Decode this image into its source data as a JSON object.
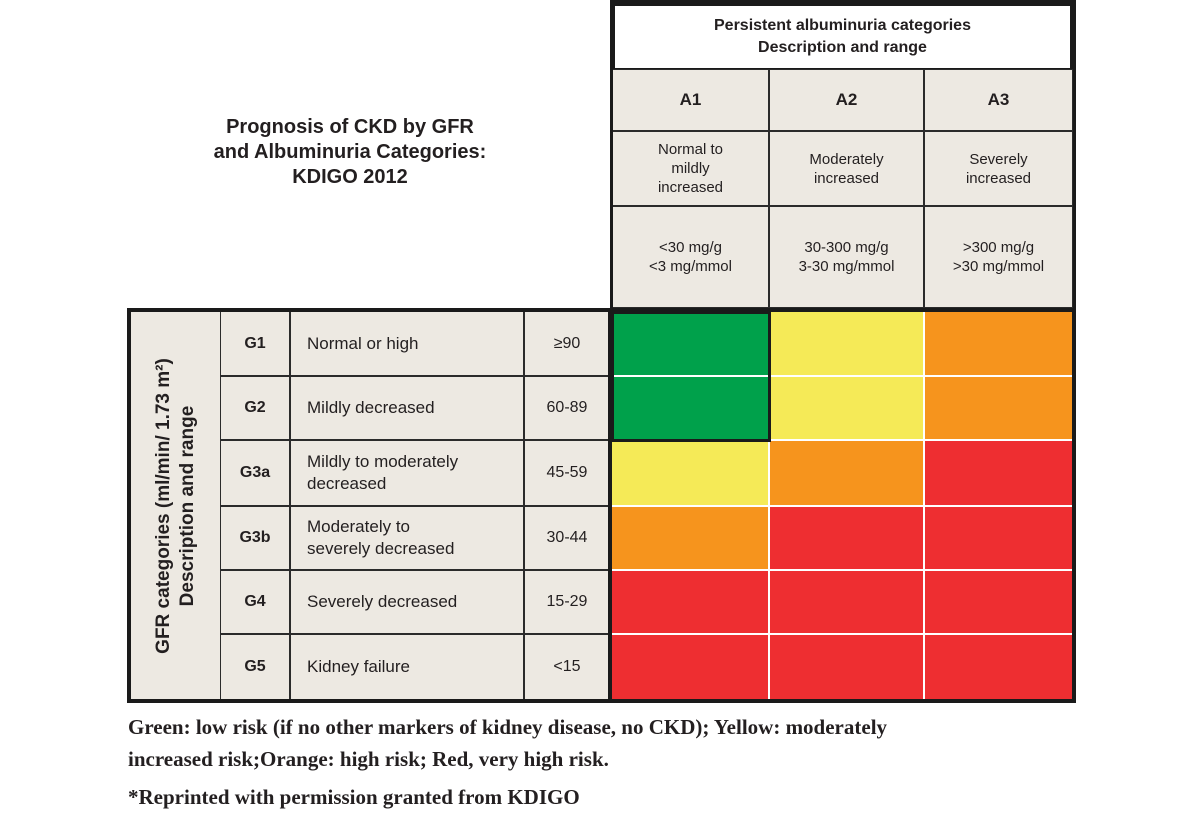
{
  "title_lines": [
    "Prognosis of CKD by GFR",
    "and Albuminuria Categories:",
    "KDIGO 2012"
  ],
  "albuminuria_header": {
    "line1": "Persistent albuminuria categories",
    "line2": "Description and range"
  },
  "albuminuria_columns": [
    {
      "code": "A1",
      "desc": [
        "Normal to",
        "mildly",
        "increased"
      ],
      "range": [
        "<30 mg/g",
        "<3 mg/mmol"
      ]
    },
    {
      "code": "A2",
      "desc": [
        "Moderately",
        "increased"
      ],
      "range": [
        "30-300 mg/g",
        "3-30 mg/mmol"
      ]
    },
    {
      "code": "A3",
      "desc": [
        "Severely",
        "increased"
      ],
      "range": [
        ">300 mg/g",
        ">30 mg/mmol"
      ]
    }
  ],
  "gfr_label": {
    "line1": "GFR categories (ml/min/ 1.73 m²)",
    "line2": "Description and range"
  },
  "gfr_rows": [
    {
      "code": "G1",
      "desc": [
        "Normal or high"
      ],
      "range": "≥90"
    },
    {
      "code": "G2",
      "desc": [
        "Mildly decreased"
      ],
      "range": "60-89"
    },
    {
      "code": "G3a",
      "desc": [
        "Mildly to moderately",
        "decreased"
      ],
      "range": "45-59"
    },
    {
      "code": "G3b",
      "desc": [
        "Moderately to",
        "severely decreased"
      ],
      "range": "30-44"
    },
    {
      "code": "G4",
      "desc": [
        "Severely decreased"
      ],
      "range": "15-29"
    },
    {
      "code": "G5",
      "desc": [
        "Kidney failure"
      ],
      "range": "<15"
    }
  ],
  "risk_grid": [
    [
      "green",
      "yellow",
      "orange"
    ],
    [
      "green",
      "yellow",
      "orange"
    ],
    [
      "yellow",
      "orange",
      "red"
    ],
    [
      "orange",
      "red",
      "red"
    ],
    [
      "red",
      "red",
      "red"
    ],
    [
      "red",
      "red",
      "red"
    ]
  ],
  "risk_colors": {
    "green": "#00a14b",
    "yellow": "#f5ea57",
    "orange": "#f6941d",
    "red": "#ee2e31"
  },
  "footnote": {
    "line1": "Green: low risk (if no other markers of kidney disease, no CKD); Yellow: moderately",
    "line2": "increased risk;Orange: high risk; Red, very high risk.",
    "line3": "*Reprinted with permission granted from KDIGO"
  }
}
